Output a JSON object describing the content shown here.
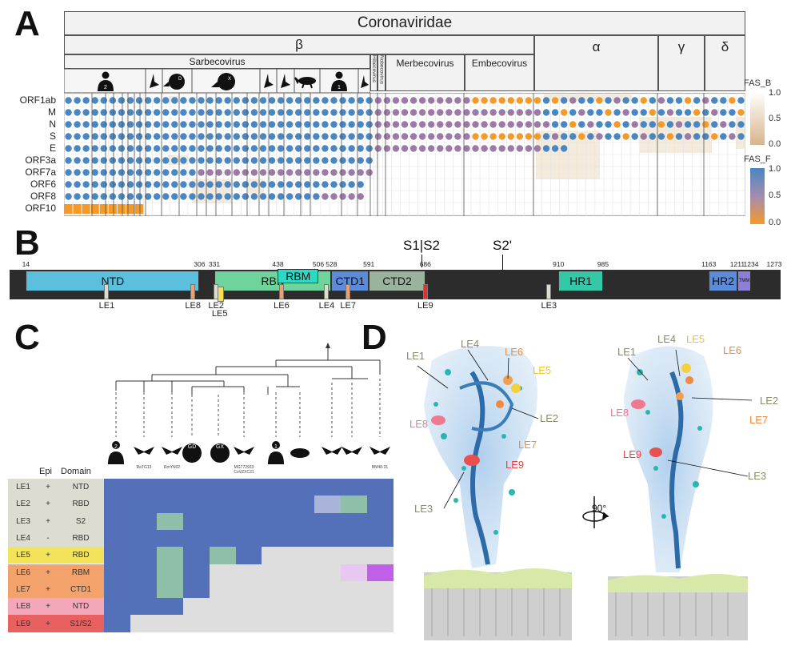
{
  "panels": {
    "a": "A",
    "b": "B",
    "c": "C",
    "d": "D"
  },
  "panelA": {
    "family": "Coronaviridae",
    "genera": [
      "β",
      "α",
      "γ",
      "δ"
    ],
    "subgenera": [
      "Sarbecovirus",
      "Merbecovirus",
      "Embecovirus"
    ],
    "vertical_subgenera": [
      "Hibecovirus",
      "Nobecovirus"
    ],
    "orfs": [
      "ORF1ab",
      "M",
      "N",
      "S",
      "E",
      "ORF3a",
      "ORF7a",
      "ORF6",
      "ORF8",
      "ORF10"
    ],
    "legend_b": {
      "title": "FAS_B",
      "ticks": [
        "1.0",
        "0.5",
        "0.0"
      ]
    },
    "legend_f": {
      "title": "FAS_F",
      "ticks": [
        "1.0",
        "0.5",
        "0.0"
      ]
    },
    "colors": {
      "blue": "#4a86c0",
      "orange": "#f39a2a",
      "beige": "#e9d2b4",
      "purple": "#9b7aa5"
    }
  },
  "panelB": {
    "domains": [
      {
        "label": "NTD",
        "start": 14,
        "end": 306,
        "color": "#5bc0de"
      },
      {
        "label": "RBD",
        "start": 331,
        "end": 528,
        "color": "#6fd49b"
      },
      {
        "label": "RBM",
        "start": 438,
        "end": 506,
        "color": "#2bd9c4"
      },
      {
        "label": "CTD1",
        "start": 528,
        "end": 591,
        "color": "#5b8bd9"
      },
      {
        "label": "CTD2",
        "start": 591,
        "end": 686,
        "color": "#9ab39d"
      },
      {
        "label": "HR1",
        "start": 910,
        "end": 985,
        "color": "#36c7a8"
      },
      {
        "label": "HR2",
        "start": 1163,
        "end": 1211,
        "color": "#5b8bd9"
      },
      {
        "label": "TMM",
        "start": 1211,
        "end": 1234,
        "color": "#8e7fd6"
      }
    ],
    "positions": [
      "14",
      "306",
      "331",
      "438",
      "506",
      "528",
      "591",
      "686",
      "910",
      "985",
      "1163",
      "1211",
      "1234",
      "1273"
    ],
    "cleavage": [
      "S1|S2",
      "S2'"
    ],
    "epitopes": [
      {
        "label": "LE1",
        "pos": 150,
        "color": "#dcdcd0"
      },
      {
        "label": "LE8",
        "pos": 295,
        "color": "#f0a070"
      },
      {
        "label": "LE2",
        "pos": 334,
        "color": "#dcdcd0"
      },
      {
        "label": "LE5",
        "pos": 340,
        "color": "#f5e050"
      },
      {
        "label": "LE6",
        "pos": 444,
        "color": "#f0a070"
      },
      {
        "label": "LE4",
        "pos": 520,
        "color": "#dcdcd0"
      },
      {
        "label": "LE7",
        "pos": 556,
        "color": "#f0a070"
      },
      {
        "label": "LE9",
        "pos": 686,
        "color": "#e03030"
      },
      {
        "label": "LE3",
        "pos": 894,
        "color": "#dcdcd0"
      }
    ]
  },
  "panelC": {
    "headers": {
      "epi": "Epi",
      "domain": "Domain"
    },
    "species_labels": [
      "2",
      "RaTG13",
      "RmYN02",
      "GD",
      "GX",
      "MG772933\nCoVZXC21",
      "1",
      "",
      "",
      "",
      "BM48-31"
    ],
    "rows": [
      {
        "le": "LE1",
        "epi": "+",
        "domain": "NTD",
        "color": "#dcdcd0"
      },
      {
        "le": "LE2",
        "epi": "+",
        "domain": "RBD",
        "color": "#dcdcd0"
      },
      {
        "le": "LE3",
        "epi": "+",
        "domain": "S2",
        "color": "#dcdcd0"
      },
      {
        "le": "LE4",
        "epi": "-",
        "domain": "RBD",
        "color": "#dcdcd0"
      },
      {
        "le": "LE5",
        "epi": "+",
        "domain": "RBD",
        "color": "#f2e35a"
      },
      {
        "le": "LE6",
        "epi": "+",
        "domain": "RBM",
        "color": "#f2a26a"
      },
      {
        "le": "LE7",
        "epi": "+",
        "domain": "CTD1",
        "color": "#f2a26a"
      },
      {
        "le": "LE8",
        "epi": "+",
        "domain": "NTD",
        "color": "#f2a8b8"
      },
      {
        "le": "LE9",
        "epi": "+",
        "domain": "S1/S2",
        "color": "#e86060"
      }
    ]
  },
  "panelD": {
    "left_labels": [
      {
        "text": "LE1",
        "color": "#8a8a6a"
      },
      {
        "text": "LE4",
        "color": "#8a8a6a"
      },
      {
        "text": "LE6",
        "color": "#f08a40"
      },
      {
        "text": "LE5",
        "color": "#e8c830"
      },
      {
        "text": "LE8",
        "color": "#f07890"
      },
      {
        "text": "LE2",
        "color": "#8a8a6a"
      },
      {
        "text": "LE7",
        "color": "#f08a40"
      },
      {
        "text": "LE9",
        "color": "#e84040"
      },
      {
        "text": "LE3",
        "color": "#8a8a6a"
      }
    ],
    "right_labels": [
      {
        "text": "LE1",
        "color": "#8a8a6a"
      },
      {
        "text": "LE4",
        "color": "#8a8a6a"
      },
      {
        "text": "LE5",
        "color": "#e8c830"
      },
      {
        "text": "LE6",
        "color": "#f08a40"
      },
      {
        "text": "LE2",
        "color": "#8a8a6a"
      },
      {
        "text": "LE8",
        "color": "#f07890"
      },
      {
        "text": "LE7",
        "color": "#f08a40"
      },
      {
        "text": "LE9",
        "color": "#e84040"
      },
      {
        "text": "LE3",
        "color": "#8a8a6a"
      }
    ],
    "rotation": "90°"
  }
}
